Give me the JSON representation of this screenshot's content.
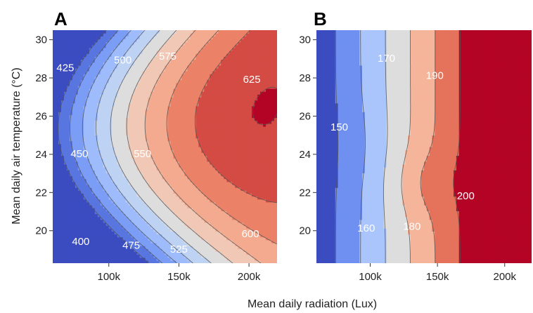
{
  "chart_data": {
    "type": "contour",
    "xlabel": "Mean daily radiation (Lux)",
    "ylabel": "Mean daily air temperature (°C)",
    "x_ticks": [
      100000,
      150000,
      200000
    ],
    "x_tick_labels": [
      "100k",
      "150k",
      "200k"
    ],
    "xlim": [
      60000,
      220000
    ],
    "y_ticks": [
      20,
      22,
      24,
      26,
      28,
      30
    ],
    "y_tick_labels": [
      "20",
      "22",
      "24",
      "26",
      "28",
      "30"
    ],
    "ylim": [
      18.3,
      30.5
    ],
    "colormap": "coolwarm (blue = low, red = high)",
    "panels": [
      {
        "letter": "A",
        "contour_levels": [
          400,
          425,
          450,
          475,
          500,
          525,
          550,
          575,
          600,
          625
        ],
        "contour_labels": [
          {
            "text": "425",
            "x": 69000,
            "y": 28.5
          },
          {
            "text": "500",
            "x": 110000,
            "y": 28.9
          },
          {
            "text": "575",
            "x": 142000,
            "y": 29.1
          },
          {
            "text": "625",
            "x": 202000,
            "y": 27.9
          },
          {
            "text": "450",
            "x": 79000,
            "y": 24.0
          },
          {
            "text": "550",
            "x": 124000,
            "y": 24.0
          },
          {
            "text": "400",
            "x": 80000,
            "y": 19.4
          },
          {
            "text": "475",
            "x": 116000,
            "y": 19.2
          },
          {
            "text": "525",
            "x": 150000,
            "y": 19.0
          },
          {
            "text": "600",
            "x": 201000,
            "y": 19.8
          }
        ]
      },
      {
        "letter": "B",
        "contour_levels": [
          150,
          160,
          170,
          180,
          190,
          200
        ],
        "contour_labels": [
          {
            "text": "170",
            "x": 112000,
            "y": 29.0
          },
          {
            "text": "190",
            "x": 148000,
            "y": 28.1
          },
          {
            "text": "150",
            "x": 77000,
            "y": 25.4
          },
          {
            "text": "200",
            "x": 171000,
            "y": 21.8
          },
          {
            "text": "160",
            "x": 97000,
            "y": 20.1
          },
          {
            "text": "180",
            "x": 131000,
            "y": 20.2
          }
        ]
      }
    ]
  },
  "colors": {
    "low": "#3a4cc0",
    "mid": "#dcdddd",
    "high": "#b40426",
    "contour_line": "#555555",
    "contour_label": "#ffffff"
  }
}
